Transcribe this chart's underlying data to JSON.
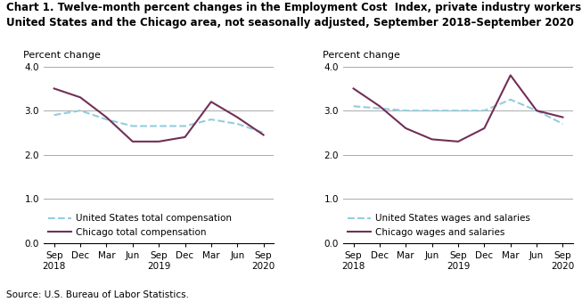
{
  "title_line1": "Chart 1. Twelve-month percent changes in the Employment Cost  Index, private industry workers,",
  "title_line2": "United States and the Chicago area, not seasonally adjusted, September 2018–September 2020",
  "source": "Source: U.S. Bureau of Labor Statistics.",
  "ylabel": "Percent change",
  "xtick_labels": [
    "Sep\n2018",
    "Dec",
    "Mar",
    "Jun",
    "Sep\n2019",
    "Dec",
    "Mar",
    "Jun",
    "Sep\n2020"
  ],
  "ylim": [
    0.0,
    4.0
  ],
  "yticks": [
    0.0,
    1.0,
    2.0,
    3.0,
    4.0
  ],
  "left_chart": {
    "us_total_comp": [
      2.9,
      3.0,
      2.8,
      2.65,
      2.65,
      2.65,
      2.8,
      2.7,
      2.5
    ],
    "chicago_total_comp": [
      3.5,
      3.3,
      2.85,
      2.3,
      2.3,
      2.4,
      3.2,
      2.85,
      2.45
    ],
    "legend1": "United States total compensation",
    "legend2": "Chicago total compensation"
  },
  "right_chart": {
    "us_wages_salaries": [
      3.1,
      3.05,
      3.0,
      3.0,
      3.0,
      3.0,
      3.25,
      3.0,
      2.7
    ],
    "chicago_wages_salaries": [
      3.5,
      3.1,
      2.6,
      2.35,
      2.3,
      2.6,
      3.8,
      3.0,
      2.85
    ],
    "legend1": "United States wages and salaries",
    "legend2": "Chicago wages and salaries"
  },
  "us_color": "#92CDDD",
  "chicago_color": "#722F57",
  "background_color": "#FFFFFF",
  "grid_color": "#AAAAAA",
  "title_fontsize": 8.5,
  "axis_label_fontsize": 8.0,
  "tick_fontsize": 7.5,
  "legend_fontsize": 7.5,
  "source_fontsize": 7.5
}
